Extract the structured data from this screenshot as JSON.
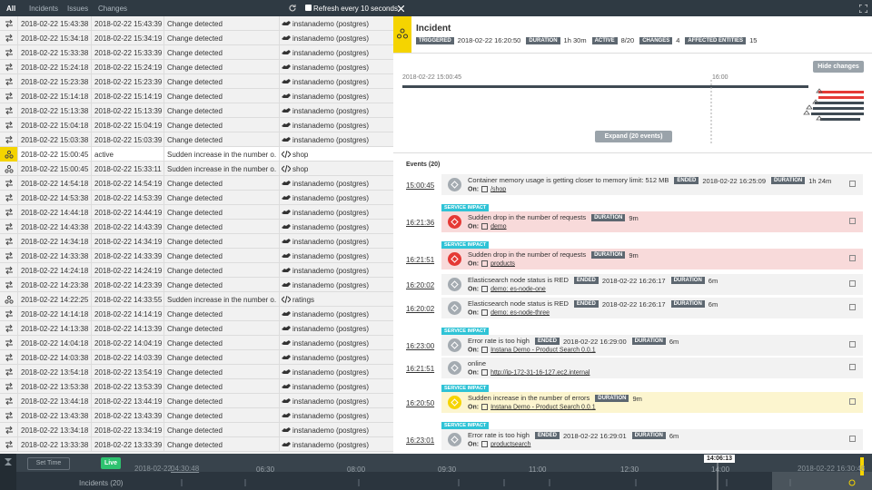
{
  "tabs": [
    "All",
    "Incidents",
    "Issues",
    "Changes"
  ],
  "refresh": "Refresh every 10 seconds",
  "table": {
    "rows": [
      [
        "2018-02-22 15:43:38",
        "2018-02-22 15:43:39",
        "Change detected",
        "instanademo (postgres)"
      ],
      [
        "2018-02-22 15:34:18",
        "2018-02-22 15:34:19",
        "Change detected",
        "instanademo (postgres)"
      ],
      [
        "2018-02-22 15:33:38",
        "2018-02-22 15:33:39",
        "Change detected",
        "instanademo (postgres)"
      ],
      [
        "2018-02-22 15:24:18",
        "2018-02-22 15:24:19",
        "Change detected",
        "instanademo (postgres)"
      ],
      [
        "2018-02-22 15:23:38",
        "2018-02-22 15:23:39",
        "Change detected",
        "instanademo (postgres)"
      ],
      [
        "2018-02-22 15:14:18",
        "2018-02-22 15:14:19",
        "Change detected",
        "instanademo (postgres)"
      ],
      [
        "2018-02-22 15:13:38",
        "2018-02-22 15:13:39",
        "Change detected",
        "instanademo (postgres)"
      ],
      [
        "2018-02-22 15:04:18",
        "2018-02-22 15:04:19",
        "Change detected",
        "instanademo (postgres)"
      ],
      [
        "2018-02-22 15:03:38",
        "2018-02-22 15:03:39",
        "Change detected",
        "instanademo (postgres)"
      ],
      [
        "2018-02-22 15:00:45",
        "active",
        "Sudden increase in the number o...",
        "shop"
      ],
      [
        "2018-02-22 15:00:45",
        "2018-02-22 15:33:11",
        "Sudden increase in the number o...",
        "shop"
      ],
      [
        "2018-02-22 14:54:18",
        "2018-02-22 14:54:19",
        "Change detected",
        "instanademo (postgres)"
      ],
      [
        "2018-02-22 14:53:38",
        "2018-02-22 14:53:39",
        "Change detected",
        "instanademo (postgres)"
      ],
      [
        "2018-02-22 14:44:18",
        "2018-02-22 14:44:19",
        "Change detected",
        "instanademo (postgres)"
      ],
      [
        "2018-02-22 14:43:38",
        "2018-02-22 14:43:39",
        "Change detected",
        "instanademo (postgres)"
      ],
      [
        "2018-02-22 14:34:18",
        "2018-02-22 14:34:19",
        "Change detected",
        "instanademo (postgres)"
      ],
      [
        "2018-02-22 14:33:38",
        "2018-02-22 14:33:39",
        "Change detected",
        "instanademo (postgres)"
      ],
      [
        "2018-02-22 14:24:18",
        "2018-02-22 14:24:19",
        "Change detected",
        "instanademo (postgres)"
      ],
      [
        "2018-02-22 14:23:38",
        "2018-02-22 14:23:39",
        "Change detected",
        "instanademo (postgres)"
      ],
      [
        "2018-02-22 14:22:25",
        "2018-02-22 14:33:55",
        "Sudden increase in the number o...",
        "ratings"
      ],
      [
        "2018-02-22 14:14:18",
        "2018-02-22 14:14:19",
        "Change detected",
        "instanademo (postgres)"
      ],
      [
        "2018-02-22 14:13:38",
        "2018-02-22 14:13:39",
        "Change detected",
        "instanademo (postgres)"
      ],
      [
        "2018-02-22 14:04:18",
        "2018-02-22 14:04:19",
        "Change detected",
        "instanademo (postgres)"
      ],
      [
        "2018-02-22 14:03:38",
        "2018-02-22 14:03:39",
        "Change detected",
        "instanademo (postgres)"
      ],
      [
        "2018-02-22 13:54:18",
        "2018-02-22 13:54:19",
        "Change detected",
        "instanademo (postgres)"
      ],
      [
        "2018-02-22 13:53:38",
        "2018-02-22 13:53:39",
        "Change detected",
        "instanademo (postgres)"
      ],
      [
        "2018-02-22 13:44:18",
        "2018-02-22 13:44:19",
        "Change detected",
        "instanademo (postgres)"
      ],
      [
        "2018-02-22 13:43:38",
        "2018-02-22 13:43:39",
        "Change detected",
        "instanademo (postgres)"
      ],
      [
        "2018-02-22 13:34:18",
        "2018-02-22 13:34:19",
        "Change detected",
        "instanademo (postgres)"
      ],
      [
        "2018-02-22 13:33:38",
        "2018-02-22 13:33:39",
        "Change detected",
        "instanademo (postgres)"
      ]
    ]
  },
  "incident": {
    "title": "Incident",
    "badges": [
      {
        "label": "TRIGGERED",
        "value": "2018-02-22 16:20:50"
      },
      {
        "label": "DURATION",
        "value": "1h 30m"
      },
      {
        "label": "ACTIVE",
        "value": "8/20"
      },
      {
        "label": "CHANGES",
        "value": "4"
      },
      {
        "label": "AFFECTED ENTITIES",
        "value": "15"
      }
    ]
  },
  "timeline": {
    "hide_button": "Hide changes",
    "start": "2018-02-22 15:00:45",
    "mark": "16:00",
    "expand": "Expand (20 events)"
  },
  "events": {
    "title": "Events (20)",
    "on_label": "On:",
    "items": [
      {
        "time": "15:00:45",
        "title": "Container memory usage is getting closer to memory limit: 512 MB",
        "badges": [
          {
            "label": "ENDED",
            "value": "2018-02-22 16:25:09"
          },
          {
            "label": "DURATION",
            "value": "1h 24m"
          }
        ],
        "on": "/shop",
        "color": "#f2f2f2"
      },
      {
        "time": "16:21:36",
        "tag": "SERVICE IMPACT",
        "title": "Sudden drop in the number of requests",
        "badges": [
          {
            "label": "DURATION",
            "value": "9m"
          }
        ],
        "on": "demo",
        "color": "#f8dada"
      },
      {
        "time": "16:21:51",
        "tag": "SERVICE IMPACT",
        "title": "Sudden drop in the number of requests",
        "badges": [
          {
            "label": "DURATION",
            "value": "9m"
          }
        ],
        "on": "products",
        "color": "#f8dada"
      },
      {
        "time": "16:20:02",
        "title": "Elasticsearch node status is RED",
        "badges": [
          {
            "label": "ENDED",
            "value": "2018-02-22 16:26:17"
          },
          {
            "label": "DURATION",
            "value": "6m"
          }
        ],
        "on": "demo: es-node-one",
        "color": "#f2f2f2"
      },
      {
        "time": "16:20:02",
        "title": "Elasticsearch node status is RED",
        "badges": [
          {
            "label": "ENDED",
            "value": "2018-02-22 16:26:17"
          },
          {
            "label": "DURATION",
            "value": "6m"
          }
        ],
        "on": "demo: es-node-three",
        "color": "#f2f2f2"
      },
      {
        "time": "16:23:00",
        "tag": "SERVICE IMPACT",
        "title": "Error rate is too high",
        "badges": [
          {
            "label": "ENDED",
            "value": "2018-02-22 16:29:00"
          },
          {
            "label": "DURATION",
            "value": "6m"
          }
        ],
        "on": "Instana Demo - Product Search 0.0.1",
        "color": "#f2f2f2"
      },
      {
        "time": "16:21:51",
        "title": "online",
        "badges": [],
        "on": "http://ip-172-31-16-127.ec2.internal",
        "color": "#f2f2f2"
      },
      {
        "time": "16:20:50",
        "tag": "SERVICE IMPACT",
        "title": "Sudden increase in the number of errors",
        "badges": [
          {
            "label": "DURATION",
            "value": "9m"
          }
        ],
        "on": "Instana Demo - Product Search 0.0.1",
        "color": "#fcf5cf"
      },
      {
        "time": "16:23:01",
        "tag": "SERVICE IMPACT",
        "title": "Error rate is too high",
        "badges": [
          {
            "label": "ENDED",
            "value": "2018-02-22 16:29:01"
          },
          {
            "label": "DURATION",
            "value": "6m"
          }
        ],
        "on": "productsearch",
        "color": "#f2f2f2"
      }
    ]
  },
  "footer": {
    "set_time": "Set Time",
    "live": "Live",
    "start_date": "2018-02-22",
    "start_time": "04:30:48",
    "ticks": [
      "06:30",
      "08:00",
      "09:30",
      "11:00",
      "12:30",
      "14:00"
    ],
    "cursor": "14:06:13",
    "end": "2018-02-22 16:30:48",
    "incidents": "Incidents (20)"
  }
}
